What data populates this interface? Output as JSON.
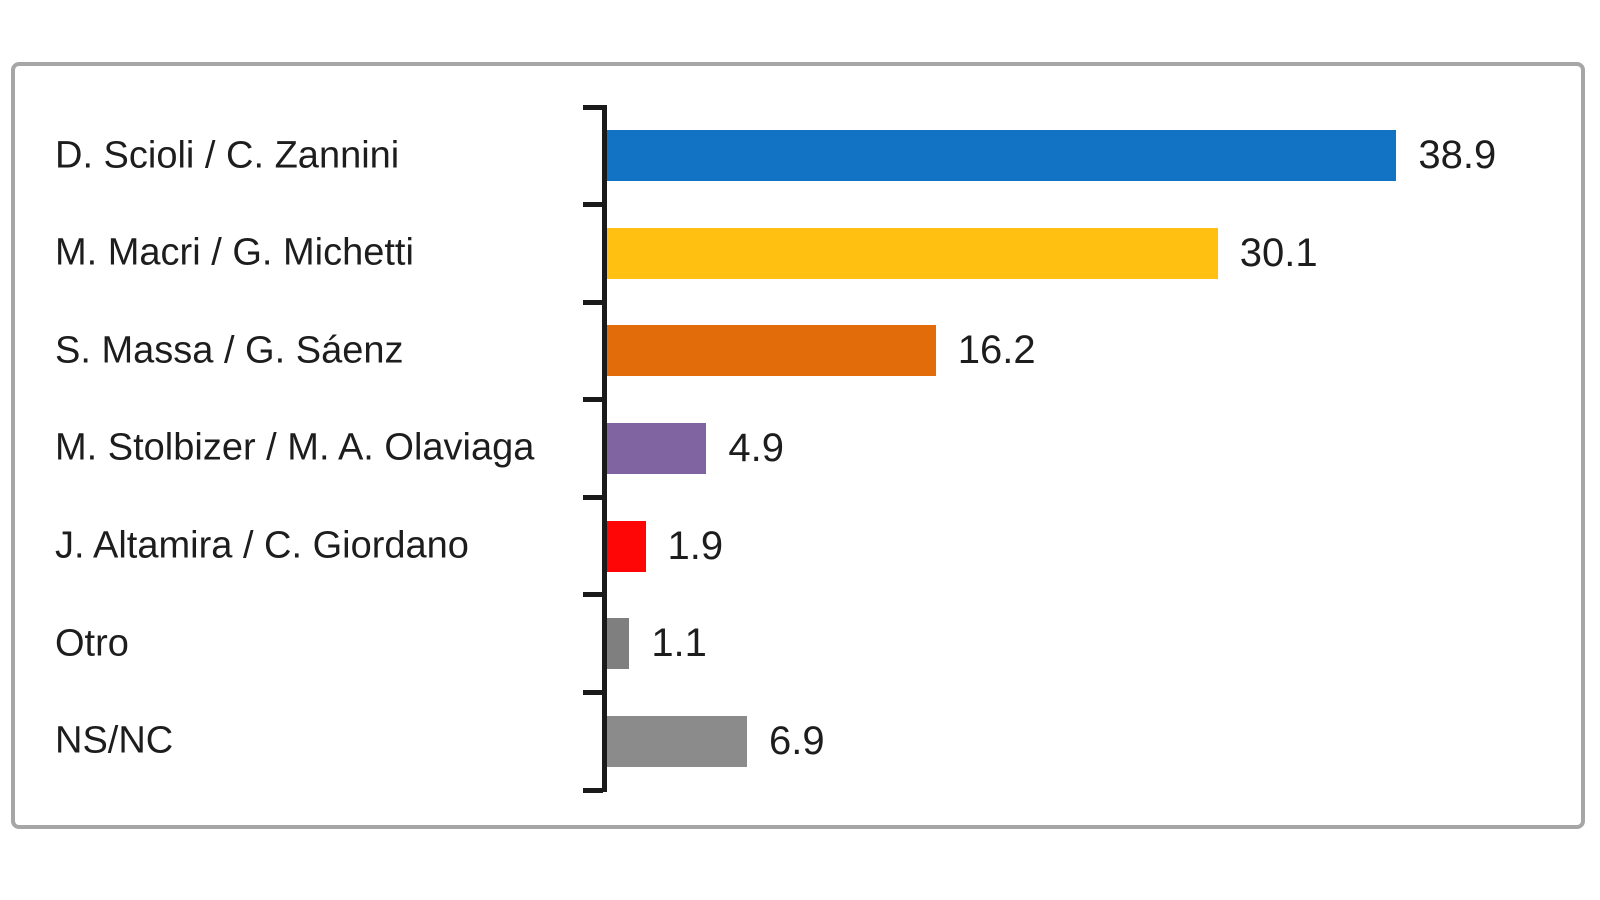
{
  "chart_data": {
    "type": "bar",
    "orientation": "horizontal",
    "title": "",
    "xlabel": "",
    "ylabel": "",
    "categories": [
      "D. Scioli / C. Zannini",
      "M. Macri / G. Michetti",
      "S. Massa / G. Sáenz",
      "M. Stolbizer / M. A. Olaviaga",
      "J. Altamira / C. Giordano",
      "Otro",
      "NS/NC"
    ],
    "values": [
      38.9,
      30.1,
      16.2,
      4.9,
      1.9,
      1.1,
      6.9
    ],
    "value_labels": [
      "38.9",
      "30.1",
      "16.2",
      "4.9",
      "1.9",
      "1.1",
      "6.9"
    ],
    "bar_colors": [
      "#1272c4",
      "#ffc011",
      "#e26b0a",
      "#8064a2",
      "#fe0606",
      "#7f7f7f",
      "#8b8b8b"
    ],
    "xlim": [
      0,
      48
    ],
    "grid": false,
    "legend": false,
    "data_labels_position": "outside-end"
  },
  "style_colors": {
    "frame_border": "#a6a6a6",
    "axis": "#1a1a1a",
    "text": "#1d1d1d",
    "background": "#ffffff"
  }
}
